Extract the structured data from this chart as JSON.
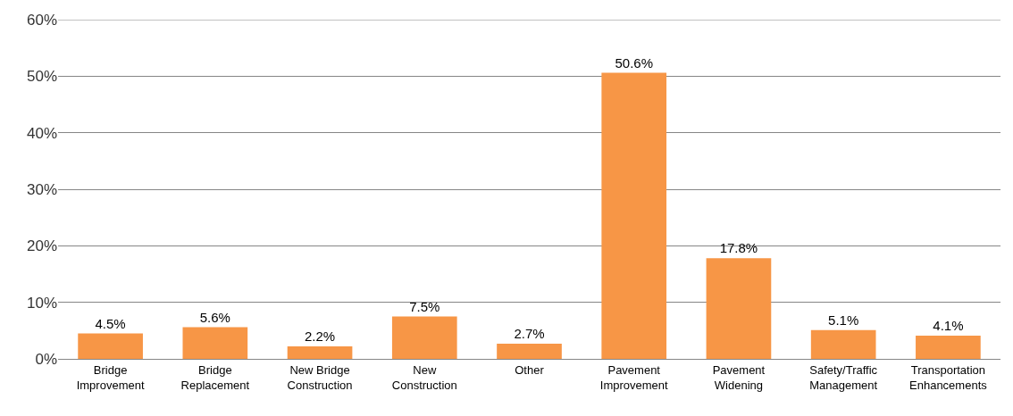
{
  "chart_data": {
    "type": "bar",
    "categories": [
      "Bridge Improvement",
      "Bridge Replacement",
      "New Bridge Construction",
      "New Construction",
      "Other",
      "Pavement Improvement",
      "Pavement Widening",
      "Safety/Traffic Management",
      "Transportation Enhancements"
    ],
    "values": [
      4.5,
      5.6,
      2.2,
      7.5,
      2.7,
      50.6,
      17.8,
      5.1,
      4.1
    ],
    "value_labels": [
      "4.5%",
      "5.6%",
      "2.2%",
      "7.5%",
      "2.7%",
      "50.6%",
      "17.8%",
      "5.1%",
      "4.1%"
    ],
    "color": "#f79646",
    "ylim": [
      0,
      60
    ],
    "yticks": [
      {
        "value": 0,
        "label": "0%"
      },
      {
        "value": 10,
        "label": "10%"
      },
      {
        "value": 20,
        "label": "20%"
      },
      {
        "value": 30,
        "label": "30%"
      },
      {
        "value": 40,
        "label": "40%"
      },
      {
        "value": 50,
        "label": "50%"
      },
      {
        "value": 60,
        "label": "60%"
      }
    ],
    "grid": "y"
  }
}
